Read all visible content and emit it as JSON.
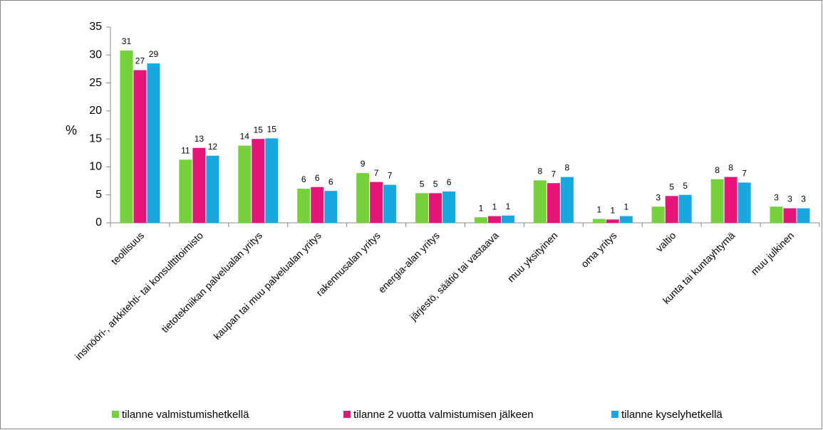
{
  "chart_data": {
    "type": "bar",
    "ylabel": "%",
    "categories": [
      "teollisuus",
      "insinööri-, arkkitehti- tai konsulttitoimisto",
      "tietotekniikan palvelualan yritys",
      "kaupan tai muu palvelualan yritys",
      "rakennusalan yritys",
      "energia-alan yritys",
      "järjestö, säätiö tai vastaava",
      "muu yksityinen",
      "oma yritys",
      "valtio",
      "kunta tai kuntayhtymä",
      "muu julkinen"
    ],
    "series": [
      {
        "name": "tilanne valmistumishetkellä",
        "color": "#76d23a",
        "values": [
          30.8,
          11.3,
          13.8,
          6.1,
          8.9,
          5.3,
          1.0,
          7.6,
          0.7,
          2.9,
          7.8,
          2.9
        ],
        "value_labels": [
          "31",
          "11",
          "14",
          "6",
          "9",
          "5",
          "1",
          "8",
          "1",
          "3",
          "8",
          "3"
        ]
      },
      {
        "name": "tilanne 2 vuotta valmistumisen jälkeen",
        "color": "#e6157a",
        "values": [
          27.3,
          13.4,
          15.0,
          6.4,
          7.3,
          5.3,
          1.2,
          7.1,
          0.6,
          4.8,
          8.2,
          2.6
        ],
        "value_labels": [
          "27",
          "13",
          "15",
          "6",
          "7",
          "5",
          "1",
          "7",
          "1",
          "5",
          "8",
          "3"
        ]
      },
      {
        "name": "tilanne kyselyhetkellä",
        "color": "#17a8e0",
        "values": [
          28.5,
          12.0,
          15.1,
          5.7,
          6.8,
          5.6,
          1.3,
          8.2,
          1.2,
          5.0,
          7.2,
          2.6
        ],
        "value_labels": [
          "29",
          "12",
          "15",
          "6",
          "7",
          "6",
          "1",
          "8",
          "1",
          "5",
          "7",
          "3"
        ]
      }
    ],
    "ylim": [
      0,
      35
    ],
    "yticks": [
      0,
      5,
      10,
      15,
      20,
      25,
      30,
      35
    ]
  }
}
